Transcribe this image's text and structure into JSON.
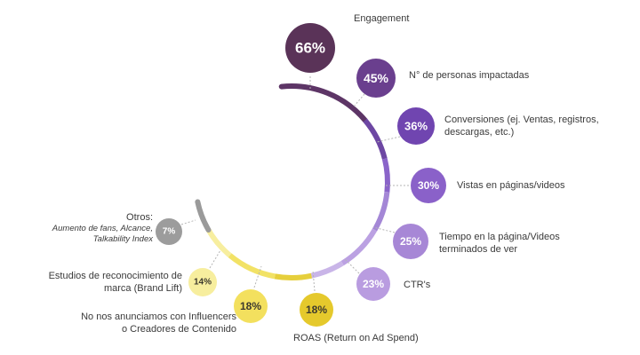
{
  "chart_data": {
    "type": "radial-bubble",
    "items": [
      {
        "label": "Engagement",
        "value": 66,
        "value_text": "66%",
        "color": "#5a3358"
      },
      {
        "label": "N° de personas impactadas",
        "value": 45,
        "value_text": "45%",
        "color": "#6a3f8e"
      },
      {
        "label": "Conversiones (ej. Ventas, registros, descargas, etc.)",
        "value": 36,
        "value_text": "36%",
        "color": "#7045b0"
      },
      {
        "label": "Vistas en páginas/videos",
        "value": 30,
        "value_text": "30%",
        "color": "#8a61c9"
      },
      {
        "label": "Tiempo en la página/Videos terminados de ver",
        "value": 25,
        "value_text": "25%",
        "color": "#a787d6"
      },
      {
        "label": "CTR's",
        "value": 23,
        "value_text": "23%",
        "color": "#b99ce0"
      },
      {
        "label": "ROAS (Return on Ad Spend)",
        "value": 18,
        "value_text": "18%",
        "color": "#e5c92c"
      },
      {
        "label": "No nos anunciamos con Influencers o Creadores de Contenido",
        "value": 18,
        "value_text": "18%",
        "color": "#f3e05e"
      },
      {
        "label": "Estudios de reconocimiento de marca (Brand Lift)",
        "value": 14,
        "value_text": "14%",
        "color": "#f7ee9e"
      },
      {
        "label": "Otros:",
        "sublabel": "Aumento de fans, Alcance, Talkability Index",
        "value": 7,
        "value_text": "7%",
        "color": "#9c9c9c"
      }
    ],
    "label_lines": [
      [
        "Engagement"
      ],
      [
        "N° de personas impactadas"
      ],
      [
        "Conversiones (ej. Ventas, registros,",
        "descargas, etc.)"
      ],
      [
        "Vistas en páginas/videos"
      ],
      [
        "Tiempo en la página/Videos",
        "terminados de ver"
      ],
      [
        "CTR's"
      ],
      [
        "ROAS (Return on Ad Spend)"
      ],
      [
        "No nos anunciamos con Influencers",
        "o Creadores de Contenido"
      ],
      [
        "Estudios de reconocimiento de",
        "marca (Brand Lift)"
      ],
      [
        "Otros:",
        "Aumento de fans, Alcance,",
        "Talkability Index"
      ]
    ]
  }
}
